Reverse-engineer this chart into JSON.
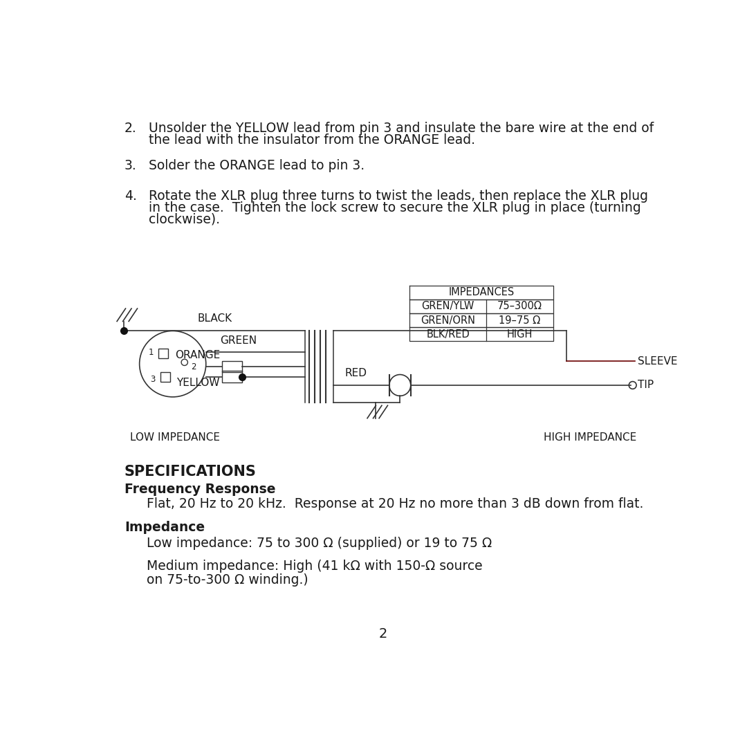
{
  "bg_color": "#ffffff",
  "text_color": "#1a1a1a",
  "item2_line1": "Unsolder the YELLOW lead from pin 3 and insulate the bare wire at the end of",
  "item2_line2": "the lead with the insulator from the ORANGE lead.",
  "item3": "Solder the ORANGE lead to pin 3.",
  "item4_line1": "Rotate the XLR plug three turns to twist the leads, then replace the XLR plug",
  "item4_line2": "in the case.  Tighten the lock screw to secure the XLR plug in place (turning",
  "item4_line3": "clockwise).",
  "table_header": "IMPEDANCES",
  "table_row1_col1": "GREN/YLW",
  "table_row1_col2": "75–300Ω",
  "table_row2_col1": "GREN/ORN",
  "table_row2_col2": "19–75 Ω",
  "table_row3_col1": "BLK/RED",
  "table_row3_col2": "HIGH",
  "label_black": "BLACK",
  "label_green": "GREEN",
  "label_orange": "ORANGE",
  "label_yellow": "YELLOW",
  "label_red": "RED",
  "label_sleeve": "SLEEVE",
  "label_tip": "TIP",
  "label_low_imp": "LOW IMPEDANCE",
  "label_high_imp": "HIGH IMPEDANCE",
  "specs_title": "SPECIFICATIONS",
  "freq_resp_header": "Frequency Response",
  "freq_resp_text": "Flat, 20 Hz to 20 kHz.  Response at 20 Hz no more than 3 dB down from flat.",
  "impedance_header": "Impedance",
  "imp_line1": "Low impedance: 75 to 300 Ω (supplied) or 19 to 75 Ω",
  "imp_line2": "Medium impedance: High (41 kΩ with 150-Ω source",
  "imp_line3": "on 75-to-300 Ω winding.)",
  "page_number": "2",
  "line_color": "#333333",
  "dark_red": "#6B0000"
}
